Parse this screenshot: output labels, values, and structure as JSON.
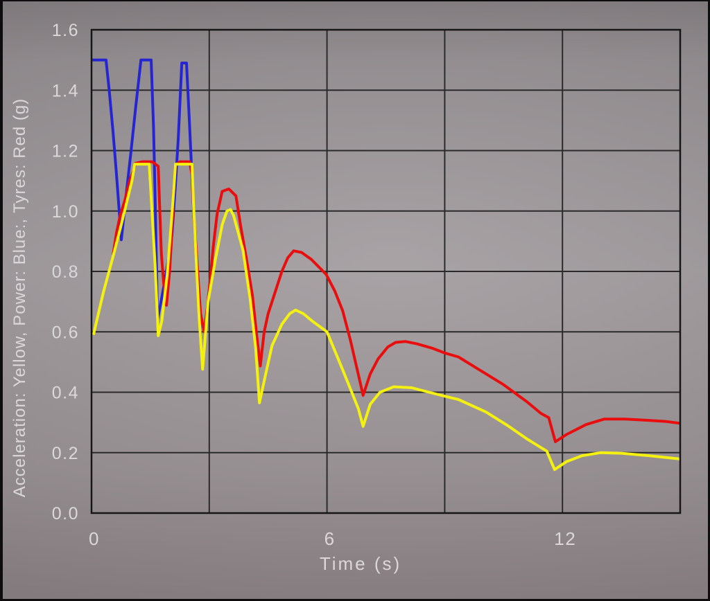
{
  "chart_data": {
    "type": "line",
    "title": "",
    "xlabel": "Time (s)",
    "ylabel": "Acceleration: Yellow, Power: Blue:, Tyres: Red (g)",
    "xlim": [
      0,
      15
    ],
    "ylim": [
      0,
      1.6
    ],
    "grid": true,
    "x_gridline_step": 3,
    "y_gridline_step": 0.2,
    "x_ticks": [
      {
        "value": 0,
        "label": "0"
      },
      {
        "value": 6,
        "label": "6"
      },
      {
        "value": 12,
        "label": "12"
      }
    ],
    "y_ticks": [
      {
        "value": 0.0,
        "label": "0.0"
      },
      {
        "value": 0.2,
        "label": "0.2"
      },
      {
        "value": 0.4,
        "label": "0.4"
      },
      {
        "value": 0.6,
        "label": "0.6"
      },
      {
        "value": 0.8,
        "label": "0.8"
      },
      {
        "value": 1.0,
        "label": "1.0"
      },
      {
        "value": 1.2,
        "label": "1.2"
      },
      {
        "value": 1.4,
        "label": "1.4"
      },
      {
        "value": 1.6,
        "label": "1.6"
      }
    ],
    "colors": {
      "grid": "#2a2a2a",
      "border": "#161616",
      "tick_text": "#dcd8da",
      "background": "#9b9598"
    },
    "series": [
      {
        "name": "Power",
        "color_key": "Blue",
        "color": "#2525d2",
        "points": [
          [
            0.0,
            1.5
          ],
          [
            0.37,
            1.5
          ],
          [
            0.45,
            1.4
          ],
          [
            0.55,
            1.26
          ],
          [
            0.63,
            1.13
          ],
          [
            0.7,
            1.01
          ],
          [
            0.76,
            0.905
          ],
          [
            0.88,
            1.05
          ],
          [
            1.0,
            1.19
          ],
          [
            1.13,
            1.35
          ],
          [
            1.26,
            1.5
          ],
          [
            1.52,
            1.5
          ],
          [
            1.58,
            1.28
          ],
          [
            1.62,
            1.05
          ],
          [
            1.66,
            0.78
          ],
          [
            1.68,
            0.64
          ],
          [
            1.8,
            0.72
          ],
          [
            1.91,
            0.8
          ],
          [
            2.05,
            0.92
          ],
          [
            2.14,
            1.09
          ],
          [
            2.21,
            1.24
          ],
          [
            2.3,
            1.49
          ],
          [
            2.42,
            1.49
          ],
          [
            2.5,
            1.28
          ],
          [
            2.57,
            1.08
          ],
          [
            2.63,
            0.93
          ],
          [
            2.7,
            0.77
          ],
          [
            2.78,
            0.575
          ]
        ]
      },
      {
        "name": "Tyres",
        "color_key": "Red",
        "color": "#e90d0d",
        "points": [
          [
            0.55,
            0.855
          ],
          [
            0.64,
            0.93
          ],
          [
            0.73,
            0.985
          ],
          [
            0.85,
            1.035
          ],
          [
            0.97,
            1.1
          ],
          [
            1.06,
            1.13
          ],
          [
            1.12,
            1.158
          ],
          [
            1.3,
            1.163
          ],
          [
            1.55,
            1.163
          ],
          [
            1.7,
            1.148
          ],
          [
            1.74,
            1.0
          ],
          [
            1.78,
            0.86
          ],
          [
            1.84,
            0.76
          ],
          [
            1.91,
            0.688
          ],
          [
            1.99,
            0.8
          ],
          [
            2.05,
            0.93
          ],
          [
            2.09,
            1.06
          ],
          [
            2.14,
            1.152
          ],
          [
            2.25,
            1.163
          ],
          [
            2.5,
            1.163
          ],
          [
            2.56,
            1.12
          ],
          [
            2.62,
            0.96
          ],
          [
            2.7,
            0.81
          ],
          [
            2.78,
            0.66
          ],
          [
            2.87,
            0.6
          ],
          [
            2.95,
            0.68
          ],
          [
            3.03,
            0.78
          ],
          [
            3.1,
            0.88
          ],
          [
            3.2,
            0.99
          ],
          [
            3.33,
            1.065
          ],
          [
            3.5,
            1.073
          ],
          [
            3.68,
            1.05
          ],
          [
            3.8,
            0.95
          ],
          [
            3.95,
            0.84
          ],
          [
            4.1,
            0.72
          ],
          [
            4.2,
            0.6
          ],
          [
            4.3,
            0.487
          ],
          [
            4.4,
            0.6
          ],
          [
            4.5,
            0.66
          ],
          [
            4.65,
            0.72
          ],
          [
            4.85,
            0.8
          ],
          [
            5.0,
            0.845
          ],
          [
            5.15,
            0.868
          ],
          [
            5.35,
            0.863
          ],
          [
            5.6,
            0.84
          ],
          [
            5.98,
            0.79
          ],
          [
            6.2,
            0.735
          ],
          [
            6.4,
            0.67
          ],
          [
            6.6,
            0.57
          ],
          [
            6.78,
            0.47
          ],
          [
            6.92,
            0.39
          ],
          [
            7.1,
            0.46
          ],
          [
            7.3,
            0.51
          ],
          [
            7.55,
            0.55
          ],
          [
            7.75,
            0.565
          ],
          [
            8.0,
            0.568
          ],
          [
            8.3,
            0.56
          ],
          [
            8.7,
            0.545
          ],
          [
            9.0,
            0.53
          ],
          [
            9.35,
            0.517
          ],
          [
            9.9,
            0.473
          ],
          [
            10.5,
            0.425
          ],
          [
            11.1,
            0.368
          ],
          [
            11.45,
            0.33
          ],
          [
            11.65,
            0.316
          ],
          [
            11.82,
            0.236
          ],
          [
            12.1,
            0.26
          ],
          [
            12.6,
            0.293
          ],
          [
            13.06,
            0.311
          ],
          [
            13.6,
            0.311
          ],
          [
            14.2,
            0.307
          ],
          [
            14.65,
            0.303
          ],
          [
            15.0,
            0.297
          ]
        ]
      },
      {
        "name": "Acceleration",
        "color_key": "Yellow",
        "color": "#f4f010",
        "points": [
          [
            0.05,
            0.59
          ],
          [
            0.3,
            0.73
          ],
          [
            0.55,
            0.85
          ],
          [
            0.73,
            0.94
          ],
          [
            0.9,
            1.03
          ],
          [
            1.03,
            1.1
          ],
          [
            1.1,
            1.155
          ],
          [
            1.47,
            1.155
          ],
          [
            1.55,
            0.98
          ],
          [
            1.62,
            0.82
          ],
          [
            1.7,
            0.587
          ],
          [
            1.79,
            0.635
          ],
          [
            1.93,
            0.79
          ],
          [
            2.02,
            0.94
          ],
          [
            2.09,
            1.06
          ],
          [
            2.14,
            1.155
          ],
          [
            2.56,
            1.155
          ],
          [
            2.6,
            1.02
          ],
          [
            2.67,
            0.83
          ],
          [
            2.74,
            0.65
          ],
          [
            2.83,
            0.476
          ],
          [
            2.97,
            0.7
          ],
          [
            3.15,
            0.835
          ],
          [
            3.33,
            0.955
          ],
          [
            3.45,
            1.0
          ],
          [
            3.54,
            1.005
          ],
          [
            3.62,
            0.985
          ],
          [
            3.86,
            0.87
          ],
          [
            4.04,
            0.71
          ],
          [
            4.18,
            0.55
          ],
          [
            4.28,
            0.365
          ],
          [
            4.42,
            0.45
          ],
          [
            4.6,
            0.555
          ],
          [
            4.85,
            0.625
          ],
          [
            5.05,
            0.66
          ],
          [
            5.2,
            0.672
          ],
          [
            5.4,
            0.66
          ],
          [
            5.63,
            0.635
          ],
          [
            6.0,
            0.6
          ],
          [
            6.35,
            0.49
          ],
          [
            6.6,
            0.41
          ],
          [
            6.8,
            0.345
          ],
          [
            6.92,
            0.287
          ],
          [
            7.1,
            0.36
          ],
          [
            7.35,
            0.4
          ],
          [
            7.7,
            0.418
          ],
          [
            8.16,
            0.415
          ],
          [
            8.6,
            0.4
          ],
          [
            9.0,
            0.387
          ],
          [
            9.35,
            0.376
          ],
          [
            10.05,
            0.335
          ],
          [
            10.6,
            0.29
          ],
          [
            11.1,
            0.245
          ],
          [
            11.6,
            0.205
          ],
          [
            11.8,
            0.144
          ],
          [
            12.1,
            0.17
          ],
          [
            12.5,
            0.19
          ],
          [
            12.97,
            0.2
          ],
          [
            13.5,
            0.198
          ],
          [
            14.2,
            0.19
          ],
          [
            15.0,
            0.179
          ]
        ]
      }
    ]
  }
}
